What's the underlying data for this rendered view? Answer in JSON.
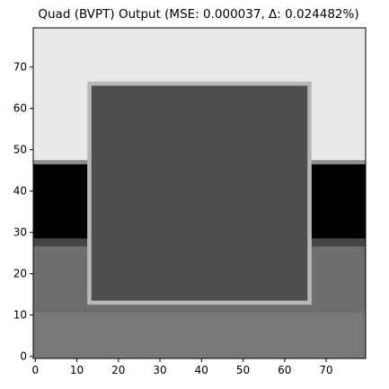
{
  "chart_data": {
    "type": "heatmap",
    "title": "Quad (BVPT) Output (MSE: 0.000037, Δ: 0.024482%)",
    "xlabel": "",
    "ylabel": "",
    "xlim": [
      -0.5,
      79.5
    ],
    "ylim": [
      -0.5,
      79.5
    ],
    "origin": "lower",
    "colormap": "gray",
    "grid": false,
    "x_ticks": [
      0,
      10,
      20,
      30,
      40,
      50,
      60,
      70
    ],
    "y_ticks": [
      0,
      10,
      20,
      30,
      40,
      50,
      60,
      70
    ],
    "regions": [
      {
        "x": [
          -0.5,
          79.5
        ],
        "y": [
          47.5,
          79.5
        ],
        "value": 0.91
      },
      {
        "x": [
          -0.5,
          79.5
        ],
        "y": [
          46.5,
          47.5
        ],
        "value": 0.56
      },
      {
        "x": [
          -0.5,
          79.5
        ],
        "y": [
          28.5,
          46.5
        ],
        "value": 0.0
      },
      {
        "x": [
          -0.5,
          79.5
        ],
        "y": [
          26.5,
          28.5
        ],
        "value": 0.27
      },
      {
        "x": [
          -0.5,
          79.5
        ],
        "y": [
          -0.5,
          26.5
        ],
        "value": 0.43
      },
      {
        "x": [
          -0.5,
          79.5
        ],
        "y": [
          -0.5,
          10.5
        ],
        "value": 0.47
      },
      {
        "x": [
          12.5,
          66.5
        ],
        "y": [
          12.5,
          66.5
        ],
        "value": 0.72
      },
      {
        "x": [
          13.5,
          65.5
        ],
        "y": [
          13.5,
          65.5
        ],
        "value": 0.31
      }
    ]
  }
}
